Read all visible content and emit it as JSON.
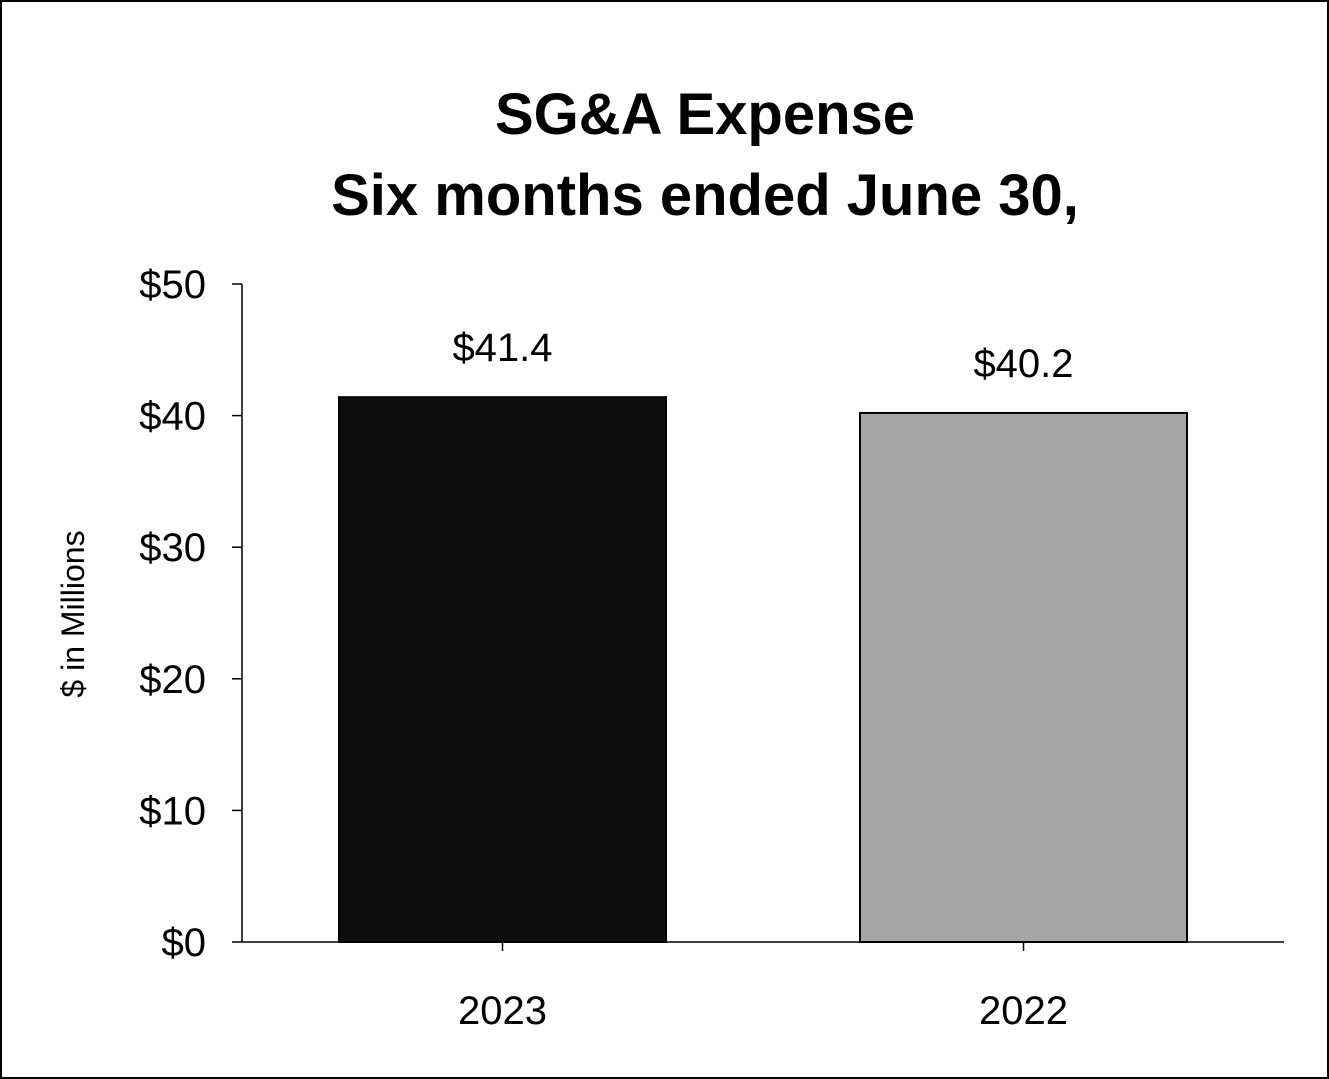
{
  "chart_data": {
    "type": "bar",
    "title": "SG&A Expense",
    "subtitle": "Six months ended June 30,",
    "xlabel": "",
    "ylabel": "$ in Millions",
    "categories": [
      "2023",
      "2022"
    ],
    "values": [
      41.4,
      40.2
    ],
    "data_labels": [
      "$41.4",
      "$40.2"
    ],
    "bar_colors": [
      "#0d0d0d",
      "#a6a6a6"
    ],
    "ylim": [
      0,
      50
    ],
    "yticks": [
      0,
      10,
      20,
      30,
      40,
      50
    ],
    "ytick_labels": [
      "$0",
      "$10",
      "$20",
      "$30",
      "$40",
      "$50"
    ],
    "grid": false,
    "legend": "none"
  }
}
